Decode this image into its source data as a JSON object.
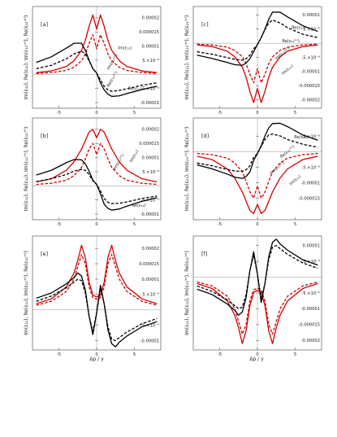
{
  "figure": {
    "xlabel": "Δp / γ"
  },
  "chart_data": [
    {
      "panel": "[a]",
      "type": "line",
      "ylabel": "Im(ε₁₂), Re(ε₁₂), Im(ε₁₂⁽ᵉ⁾), Re(ε₁₂⁽ᵉ⁾)",
      "xlim": [
        -8.5,
        8.5
      ],
      "ylim": [
        -1.2e-05,
        2.4e-05
      ],
      "xticks": [
        -5,
        0,
        5
      ],
      "xtick_labels": [
        "-5",
        "0",
        "5"
      ],
      "yticks": [
        -1e-05,
        -5e-06,
        5e-06,
        1e-05,
        1.5e-05,
        2e-05
      ],
      "ytick_labels": [
        "-0.00001",
        "-5.×10⁻⁶",
        "5.×10⁻⁶",
        "0.00001",
        "0.000015",
        "0.00002"
      ],
      "x": [
        -8,
        -6,
        -4,
        -3,
        -2,
        -1.5,
        -1,
        -0.5,
        0,
        0.5,
        1,
        1.5,
        2,
        3,
        4,
        6,
        8
      ],
      "series": [
        {
          "color": "#d40000",
          "dash": "solid",
          "values": [
            6e-07,
            1.2e-06,
            2.8e-06,
            4.8e-06,
            8.5e-06,
            1.2e-05,
            1.7e-05,
            2.1e-05,
            1.6e-05,
            2.1e-05,
            1.7e-05,
            1.2e-05,
            8.5e-06,
            4.8e-06,
            2.8e-06,
            1.2e-06,
            6e-07
          ]
        },
        {
          "color": "#d40000",
          "dash": "dashed",
          "values": [
            3e-07,
            6e-07,
            1.4e-06,
            2.5e-06,
            4.8e-06,
            7.2e-06,
            1.1e-05,
            1.4e-05,
            9e-06,
            1.4e-05,
            1.1e-05,
            7.2e-06,
            4.8e-06,
            2.5e-06,
            1.4e-06,
            6e-07,
            3e-07
          ]
        },
        {
          "color": "#000000",
          "dash": "solid",
          "values": [
            4.2e-06,
            6.2e-06,
            9.3e-06,
            1.1e-05,
            1.1e-05,
            8.5e-06,
            5e-06,
            2e-06,
            5e-07,
            -3e-06,
            -5.5e-06,
            -7e-06,
            -7.8e-06,
            -7.6e-06,
            -6.8e-06,
            -5.4e-06,
            -4.2e-06
          ]
        },
        {
          "color": "#000000",
          "dash": "dashed",
          "values": [
            2e-06,
            3.2e-06,
            5.5e-06,
            7.2e-06,
            8.2e-06,
            7.2e-06,
            4.8e-06,
            2e-06,
            5e-07,
            -2e-06,
            -4.2e-06,
            -5.5e-06,
            -6e-06,
            -5.7e-06,
            -5.1e-06,
            -3.9e-06,
            -3e-06
          ]
        }
      ],
      "annotations": [
        "Im(ε₁₂)",
        "Im(ε₁₂⁽ᵉ⁾)",
        "Re(ε₁₂⁽ᵉ⁾)",
        "Re(ε₁₂)"
      ]
    },
    {
      "panel": "[b]",
      "type": "line",
      "ylabel": "Im(ε₁₂), Re(ε₁₂), Im(ε₁₂⁽ᵉ⁾), Re(ε₁₂⁽ᵉ⁾)",
      "xlim": [
        -8.5,
        8.5
      ],
      "ylim": [
        -1.2e-05,
        2.4e-05
      ],
      "xticks": [
        -5,
        0,
        5
      ],
      "xtick_labels": [
        "-5",
        "0",
        "5"
      ],
      "yticks": [
        -1e-05,
        -5e-06,
        5e-06,
        1e-05,
        1.5e-05,
        2e-05
      ],
      "ytick_labels": [
        "-0.00001",
        "-5.×10⁻⁶",
        "5.×10⁻⁶",
        "0.00001",
        "0.000015",
        "0.00002"
      ],
      "x": [
        -8,
        -6,
        -4,
        -3,
        -2,
        -1.5,
        -1,
        -0.5,
        0,
        0.5,
        1,
        1.5,
        2,
        3,
        4,
        6,
        8
      ],
      "series": [
        {
          "color": "#d40000",
          "dash": "solid",
          "values": [
            1.4e-06,
            2.5e-06,
            5.5e-06,
            8.5e-06,
            1.3e-05,
            1.6e-05,
            1.9e-05,
            2e-05,
            1.7e-05,
            2e-05,
            1.9e-05,
            1.6e-05,
            1.3e-05,
            8.5e-06,
            5.5e-06,
            2.5e-06,
            1.4e-06
          ]
        },
        {
          "color": "#d40000",
          "dash": "dashed",
          "values": [
            5e-07,
            9e-07,
            2e-06,
            3.6e-06,
            6.5e-06,
            9.5e-06,
            1.3e-05,
            1.5e-05,
            1.1e-05,
            1.5e-05,
            1.3e-05,
            9.5e-06,
            6.5e-06,
            3.6e-06,
            2e-06,
            9e-07,
            5e-07
          ]
        },
        {
          "color": "#000000",
          "dash": "solid",
          "values": [
            3.8e-06,
            5.5e-06,
            8.2e-06,
            9.3e-06,
            9.2e-06,
            7.8e-06,
            5.2e-06,
            2e-06,
            5e-07,
            -2.8e-06,
            -6.5e-06,
            -8e-06,
            -8.6e-06,
            -8.2e-06,
            -7.2e-06,
            -5.5e-06,
            -4.2e-06
          ]
        },
        {
          "color": "#000000",
          "dash": "dashed",
          "values": [
            1.5e-06,
            2.5e-06,
            4e-06,
            5.2e-06,
            5.8e-06,
            5.5e-06,
            4e-06,
            1.8e-06,
            5e-07,
            -1.8e-06,
            -4.5e-06,
            -5.8e-06,
            -6.3e-06,
            -6.2e-06,
            -5.7e-06,
            -4.5e-06,
            -3.6e-06
          ]
        }
      ],
      "annotations": [
        "Im(ε₁₂)",
        "Im(ε₁₂⁽ᵉ⁾)",
        "Re(ε₁₂)"
      ]
    },
    {
      "panel": "[c]",
      "type": "line",
      "ylabel": "Im(ε₂₁), Re(ε₂₁), Im(ε₂₁⁽ᵉ⁾), Re(ε₂₁⁽ᵉ⁾)",
      "xlim": [
        -8.5,
        8.5
      ],
      "ylim": [
        -2.3e-05,
        1.3e-05
      ],
      "xticks": [
        -5,
        0,
        5
      ],
      "xtick_labels": [
        "-5",
        "0",
        "5"
      ],
      "yticks": [
        -2e-05,
        -1.5e-05,
        -1e-05,
        -5e-06,
        5e-06,
        1e-05
      ],
      "ytick_labels": [
        "-0.00002",
        "-0.000015",
        "-0.00001",
        "-5.×10⁻⁶",
        "5.×10⁻⁶",
        "0.00001"
      ],
      "x": [
        -8,
        -6,
        -4,
        -3,
        -2,
        -1.5,
        -1,
        -0.5,
        0,
        0.5,
        1,
        1.5,
        2,
        3,
        4,
        6,
        8
      ],
      "series": [
        {
          "color": "#d40000",
          "dash": "solid",
          "values": [
            -6e-07,
            -1.2e-06,
            -2.8e-06,
            -4.8e-06,
            -8.5e-06,
            -1.2e-05,
            -1.7e-05,
            -2.1e-05,
            -1.6e-05,
            -2.1e-05,
            -1.7e-05,
            -1.2e-05,
            -8.5e-06,
            -4.8e-06,
            -2.8e-06,
            -1.2e-06,
            -6e-07
          ]
        },
        {
          "color": "#d40000",
          "dash": "dashed",
          "values": [
            -3e-07,
            -6e-07,
            -1.4e-06,
            -2.5e-06,
            -4.8e-06,
            -7.2e-06,
            -1.1e-05,
            -1.4e-05,
            -9e-06,
            -1.4e-05,
            -1.1e-05,
            -7.2e-06,
            -4.8e-06,
            -2.5e-06,
            -1.4e-06,
            -6e-07,
            -3e-07
          ]
        },
        {
          "color": "#000000",
          "dash": "solid",
          "values": [
            -4.2e-06,
            -5.4e-06,
            -6.8e-06,
            -7.6e-06,
            -7.8e-06,
            -7e-06,
            -5.5e-06,
            -3e-06,
            -5e-07,
            2e-06,
            5e-06,
            8.5e-06,
            1.1e-05,
            1.1e-05,
            9.3e-06,
            6.2e-06,
            4.2e-06
          ]
        },
        {
          "color": "#000000",
          "dash": "dashed",
          "values": [
            -3e-06,
            -3.9e-06,
            -5.1e-06,
            -5.7e-06,
            -6e-06,
            -5.5e-06,
            -4.2e-06,
            -2e-06,
            -5e-07,
            2e-06,
            4.8e-06,
            7.2e-06,
            8.2e-06,
            7.2e-06,
            5.5e-06,
            3.2e-06,
            2e-06
          ]
        }
      ],
      "annotations": [
        "Re(ε₂₁)",
        "Re(ε₂₁⁽ᵉ⁾)",
        "Im(ε₂₁⁽ᵉ⁾)",
        "Im(ε₂₁)"
      ]
    },
    {
      "panel": "[d]",
      "type": "line",
      "ylabel": "Im(ε₂₁), Re(ε₂₁), Im(ε₂₁⁽ᵉ⁾), Re(ε₂₁⁽ᵉ⁾)",
      "xlim": [
        -8.5,
        8.5
      ],
      "ylim": [
        -2.2e-05,
        1.1e-05
      ],
      "xticks": [
        -5,
        0,
        5
      ],
      "xtick_labels": [
        "-5",
        "0",
        "5"
      ],
      "yticks": [
        -1.5e-05,
        -1e-05,
        -5e-06,
        5e-06
      ],
      "ytick_labels": [
        "-0.000015",
        "-0.00001",
        "-5.×10⁻⁶",
        "5.×10⁻⁶"
      ],
      "x": [
        -8,
        -6,
        -4,
        -3,
        -2,
        -1.5,
        -1,
        -0.5,
        0,
        0.5,
        1,
        1.5,
        2,
        3,
        4,
        6,
        8
      ],
      "series": [
        {
          "color": "#d40000",
          "dash": "solid",
          "values": [
            -1.4e-06,
            -2.5e-06,
            -5.5e-06,
            -8.5e-06,
            -1.3e-05,
            -1.6e-05,
            -1.9e-05,
            -2e-05,
            -1.7e-05,
            -2e-05,
            -1.9e-05,
            -1.6e-05,
            -1.3e-05,
            -8.5e-06,
            -5.5e-06,
            -2.5e-06,
            -1.4e-06
          ]
        },
        {
          "color": "#d40000",
          "dash": "dashed",
          "values": [
            -5e-07,
            -9e-07,
            -2e-06,
            -3.6e-06,
            -6.5e-06,
            -9.5e-06,
            -1.3e-05,
            -1.5e-05,
            -1.1e-05,
            -1.5e-05,
            -1.3e-05,
            -9.5e-06,
            -6.5e-06,
            -3.6e-06,
            -2e-06,
            -9e-07,
            -5e-07
          ]
        },
        {
          "color": "#000000",
          "dash": "solid",
          "values": [
            -4.2e-06,
            -5.5e-06,
            -7.2e-06,
            -8.2e-06,
            -8.6e-06,
            -8e-06,
            -6.5e-06,
            -2.8e-06,
            -5e-07,
            2e-06,
            5.2e-06,
            7.8e-06,
            9.2e-06,
            9.3e-06,
            8.2e-06,
            5.5e-06,
            3.8e-06
          ]
        },
        {
          "color": "#000000",
          "dash": "dashed",
          "values": [
            -3.6e-06,
            -4.5e-06,
            -5.7e-06,
            -6.2e-06,
            -6.3e-06,
            -5.8e-06,
            -4.5e-06,
            -1.8e-06,
            -5e-07,
            1.8e-06,
            4e-06,
            5.5e-06,
            5.8e-06,
            5.2e-06,
            4e-06,
            2.5e-06,
            1.5e-06
          ]
        }
      ],
      "annotations": [
        "Re(ε₂₁)",
        "Re(ε₂₁⁽ᵉ⁾)",
        "Im(ε₂₁⁽ᵉ⁾)",
        "Im(ε₂₁)"
      ]
    },
    {
      "panel": "[e]",
      "type": "line",
      "ylabel": "Im(ε₁₂), Re(ε₁₂), Im(ε₁₂⁽ᵉ⁾), Re(ε₁₂⁽ᵉ⁾)",
      "xlim": [
        -8.5,
        8.5
      ],
      "ylim": [
        -1.3e-05,
        2.4e-05
      ],
      "xticks": [
        -5,
        0,
        5
      ],
      "xtick_labels": [
        "-5",
        "0",
        "5"
      ],
      "yticks": [
        -1e-05,
        -5e-06,
        5e-06,
        1e-05,
        1.5e-05,
        2e-05
      ],
      "ytick_labels": [
        "-0.00001",
        "-5.×10⁻⁶",
        "5.×10⁻⁶",
        "0.00001",
        "0.000015",
        "0.00002"
      ],
      "x": [
        -8,
        -6,
        -4,
        -3,
        -2.5,
        -2,
        -1.5,
        -1,
        -0.5,
        0,
        0.5,
        1,
        1.5,
        2,
        2.5,
        3,
        4,
        6,
        8
      ],
      "series": [
        {
          "color": "#d40000",
          "dash": "solid",
          "values": [
            2e-06,
            3.6e-06,
            7.5e-06,
            1.2e-05,
            1.6e-05,
            2.1e-05,
            1.7e-05,
            9e-06,
            4.8e-06,
            4.2e-06,
            4.8e-06,
            9e-06,
            1.7e-05,
            2.1e-05,
            1.6e-05,
            1.2e-05,
            7.5e-06,
            3.6e-06,
            2e-06
          ]
        },
        {
          "color": "#d40000",
          "dash": "dashed",
          "values": [
            1.5e-06,
            2.8e-06,
            6e-06,
            1e-05,
            1.4e-05,
            1.8e-05,
            1.5e-05,
            7.5e-06,
            4e-06,
            3.5e-06,
            4e-06,
            7.5e-06,
            1.5e-05,
            1.8e-05,
            1.4e-05,
            1e-05,
            6e-06,
            2.8e-06,
            1.5e-06
          ]
        },
        {
          "color": "#000000",
          "dash": "solid",
          "values": [
            3.8e-06,
            5.5e-06,
            8.5e-06,
            1.05e-05,
            1.2e-05,
            1.1e-05,
            6.5e-06,
            -2e-06,
            -8e-06,
            -1e-06,
            8e-06,
            2e-06,
            -6.5e-06,
            -1.1e-05,
            -1.2e-05,
            -1.05e-05,
            -8.5e-06,
            -5.5e-06,
            -3.8e-06
          ]
        },
        {
          "color": "#000000",
          "dash": "dashed",
          "values": [
            2.8e-06,
            4.5e-06,
            7.2e-06,
            9e-06,
            1e-05,
            9.5e-06,
            5.5e-06,
            -2e-06,
            -7e-06,
            -1e-06,
            7e-06,
            2e-06,
            -5.5e-06,
            -9.5e-06,
            -1e-05,
            -9e-06,
            -7.2e-06,
            -4.5e-06,
            -2.8e-06
          ]
        }
      ],
      "annotations": []
    },
    {
      "panel": "[f]",
      "type": "line",
      "ylabel": "Im(ε₂₁), Re(ε₂₁), Im(ε₂₁⁽ᵉ⁾), Re(ε₂₁⁽ᵉ⁾)",
      "xlim": [
        -8.5,
        8.5
      ],
      "ylim": [
        -2.3e-05,
        1.3e-05
      ],
      "xticks": [
        -5,
        0,
        5
      ],
      "xtick_labels": [
        "-5",
        "0",
        "5"
      ],
      "yticks": [
        -2e-05,
        -1.5e-05,
        -1e-05,
        -5e-06,
        5e-06,
        1e-05
      ],
      "ytick_labels": [
        "-0.00002",
        "-0.000015",
        "-0.00001",
        "-5.×10⁻⁶",
        "5.×10⁻⁶",
        "0.00001"
      ],
      "x": [
        -8,
        -6,
        -4,
        -3,
        -2.5,
        -2,
        -1.5,
        -1,
        -0.5,
        0,
        0.5,
        1,
        1.5,
        2,
        2.5,
        3,
        4,
        6,
        8
      ],
      "series": [
        {
          "color": "#d40000",
          "dash": "solid",
          "values": [
            -2e-06,
            -3.6e-06,
            -7.5e-06,
            -1.2e-05,
            -1.6e-05,
            -2.1e-05,
            -1.7e-05,
            -9e-06,
            -4.8e-06,
            -4.2e-06,
            -4.8e-06,
            -9e-06,
            -1.7e-05,
            -2.1e-05,
            -1.6e-05,
            -1.2e-05,
            -7.5e-06,
            -3.6e-06,
            -2e-06
          ]
        },
        {
          "color": "#d40000",
          "dash": "dashed",
          "values": [
            -1.5e-06,
            -2.8e-06,
            -6e-06,
            -1e-05,
            -1.4e-05,
            -1.8e-05,
            -1.5e-05,
            -7.5e-06,
            -4e-06,
            -3.5e-06,
            -4e-06,
            -7.5e-06,
            -1.5e-05,
            -1.8e-05,
            -1.4e-05,
            -1e-05,
            -6e-06,
            -2.8e-06,
            -1.5e-06
          ]
        },
        {
          "color": "#000000",
          "dash": "solid",
          "values": [
            -3.8e-06,
            -5.5e-06,
            -8.5e-06,
            -1.05e-05,
            -1.2e-05,
            -1.1e-05,
            -6.5e-06,
            2e-06,
            8e-06,
            1e-06,
            -8e-06,
            -2e-06,
            6.5e-06,
            1.1e-05,
            1.2e-05,
            1.05e-05,
            8.5e-06,
            5.5e-06,
            3.8e-06
          ]
        },
        {
          "color": "#000000",
          "dash": "dashed",
          "values": [
            -2.8e-06,
            -4.5e-06,
            -7.2e-06,
            -9e-06,
            -1e-05,
            -9.5e-06,
            -5.5e-06,
            2e-06,
            7e-06,
            1e-06,
            -7e-06,
            -2e-06,
            5.5e-06,
            9.5e-06,
            1e-05,
            9e-06,
            7.2e-06,
            4.5e-06,
            2.8e-06
          ]
        }
      ],
      "annotations": []
    }
  ]
}
